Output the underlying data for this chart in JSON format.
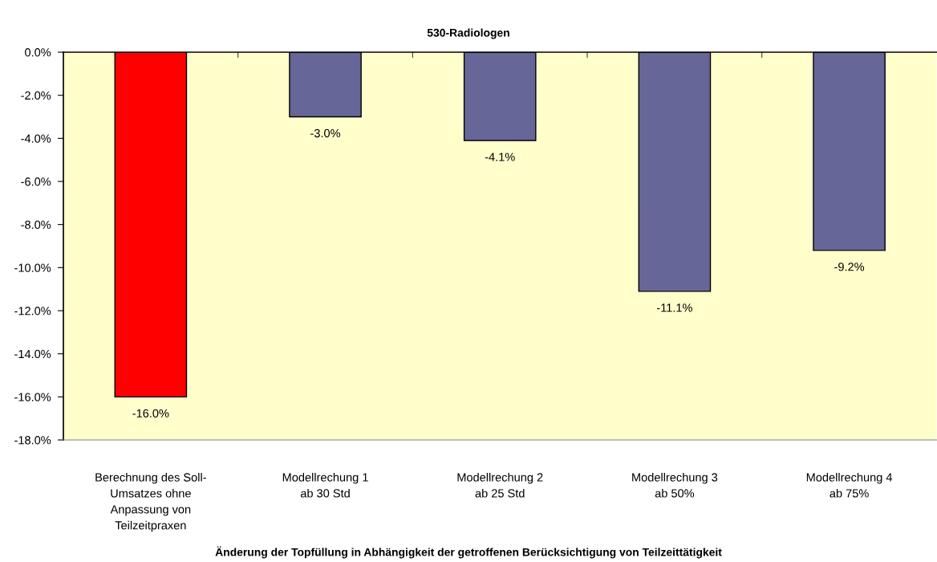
{
  "chart_data": {
    "type": "bar",
    "title": "530-Radiologen",
    "xlabel": "Änderung der Topfüllung in Abhängigkeit der getroffenen Berücksichtigung von Teilzeittätigkeit",
    "categories": [
      "Berechnung des Soll-\nUmsatzes ohne\nAnpassung von\nTeilzeitpraxen",
      "Modellrechung 1\nab 30 Std",
      "Modellrechung 2\nab 25 Std",
      "Modellrechung 3\nab 50%",
      "Modellrechung 4\nab 75%"
    ],
    "values": [
      -16.0,
      -3.0,
      -4.1,
      -11.1,
      -9.2
    ],
    "colors": [
      "#ff0000",
      "#666699",
      "#666699",
      "#666699",
      "#666699"
    ],
    "value_labels": [
      "-16.0%",
      "-3.0%",
      "-4.1%",
      "-11.1%",
      "-9.2%"
    ],
    "ylim": [
      -18,
      0
    ],
    "yticks": [
      {
        "value": 0,
        "label": "0.0%"
      },
      {
        "value": -2,
        "label": "-2.0%"
      },
      {
        "value": -4,
        "label": "-4.0%"
      },
      {
        "value": -6,
        "label": "-6.0%"
      },
      {
        "value": -8,
        "label": "-8.0%"
      },
      {
        "value": -10,
        "label": "-10.0%"
      },
      {
        "value": -12,
        "label": "-12.0%"
      },
      {
        "value": -14,
        "label": "-14.0%"
      },
      {
        "value": -16,
        "label": "-16.0%"
      },
      {
        "value": -18,
        "label": "-18.0%"
      }
    ]
  }
}
